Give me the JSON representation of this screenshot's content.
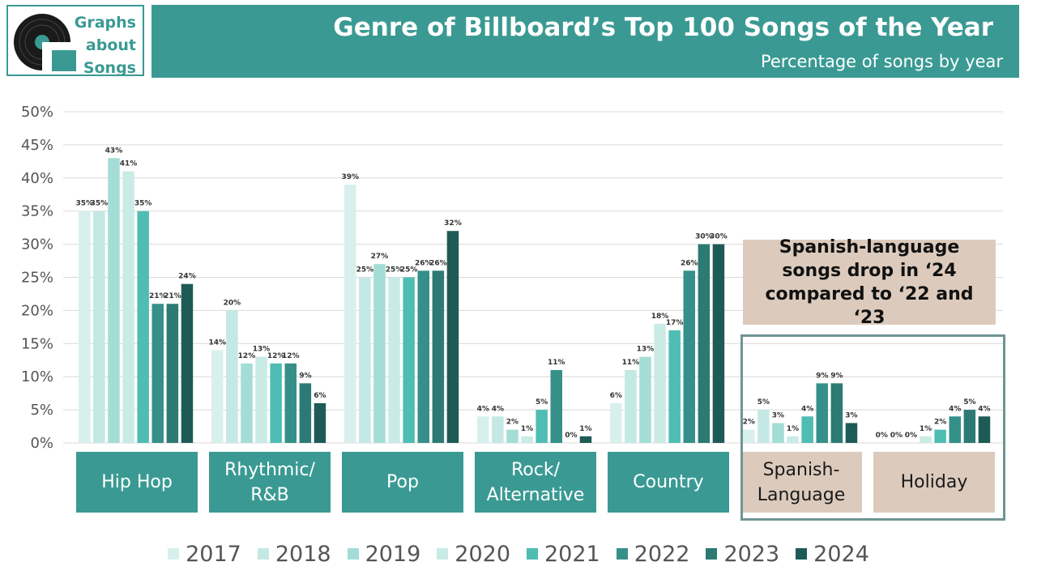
{
  "logo": {
    "line1": "Graphs",
    "line2": "about",
    "line3": "Songs"
  },
  "header": {
    "title": "Genre of Billboard’s Top 100 Songs of the Year",
    "subtitle": "Percentage of songs by year"
  },
  "annotation": {
    "text": "Spanish-language songs drop in ‘24 compared to ‘22 and ‘23"
  },
  "colors": {
    "series": [
      "#d8f0ec",
      "#c4e8e3",
      "#a3ddd6",
      "#c9ebe6",
      "#4fbdb3",
      "#35908a",
      "#2c7a73",
      "#1f5b56"
    ],
    "accent": "#3a9a93",
    "highlight": "#dccbbd"
  },
  "chart_data": {
    "type": "bar",
    "categories": [
      "Hip Hop",
      "Rhythmic/ R&B",
      "Pop",
      "Rock/ Alternative",
      "Country",
      "Spanish- Language",
      "Holiday"
    ],
    "ylim": [
      0,
      50
    ],
    "yticks": [
      "0%",
      "5%",
      "10%",
      "15%",
      "20%",
      "25%",
      "30%",
      "35%",
      "40%",
      "45%",
      "50%"
    ],
    "grid": true,
    "legend": "bottom",
    "series": [
      {
        "name": "2017",
        "values": [
          35,
          14,
          39,
          4,
          6,
          2,
          0
        ]
      },
      {
        "name": "2018",
        "values": [
          35,
          20,
          25,
          4,
          11,
          5,
          0
        ]
      },
      {
        "name": "2019",
        "values": [
          43,
          12,
          27,
          2,
          13,
          3,
          0
        ]
      },
      {
        "name": "2020",
        "values": [
          41,
          13,
          25,
          1,
          18,
          1,
          1
        ]
      },
      {
        "name": "2021",
        "values": [
          35,
          12,
          25,
          5,
          17,
          4,
          2
        ]
      },
      {
        "name": "2022",
        "values": [
          21,
          12,
          26,
          11,
          26,
          9,
          4
        ]
      },
      {
        "name": "2023",
        "values": [
          21,
          9,
          26,
          0,
          30,
          9,
          5
        ]
      },
      {
        "name": "2024",
        "values": [
          24,
          6,
          32,
          1,
          30,
          3,
          4
        ]
      }
    ],
    "data_labels": [
      [
        "35%",
        "35%",
        "43%",
        "41%",
        "35%",
        "21%",
        "21%",
        "24%"
      ],
      [
        "14%",
        "20%",
        "12%",
        "13%",
        "12%",
        "12%",
        "9%",
        "6%"
      ],
      [
        "39%",
        "25%",
        "27%",
        "25%",
        "25%",
        "26%",
        "26%",
        "32%"
      ],
      [
        "4%",
        "4%",
        "2%",
        "1%",
        "5%",
        "11%",
        "0%",
        "1%"
      ],
      [
        "6%",
        "11%",
        "13%",
        "18%",
        "17%",
        "26%",
        "30%",
        "30%"
      ],
      [
        "2%",
        "5%",
        "3%",
        "1%",
        "4%",
        "9%",
        "9%",
        "3%"
      ],
      [
        "0%",
        "0%",
        "0%",
        "1%",
        "2%",
        "4%",
        "5%",
        "4%"
      ]
    ]
  }
}
